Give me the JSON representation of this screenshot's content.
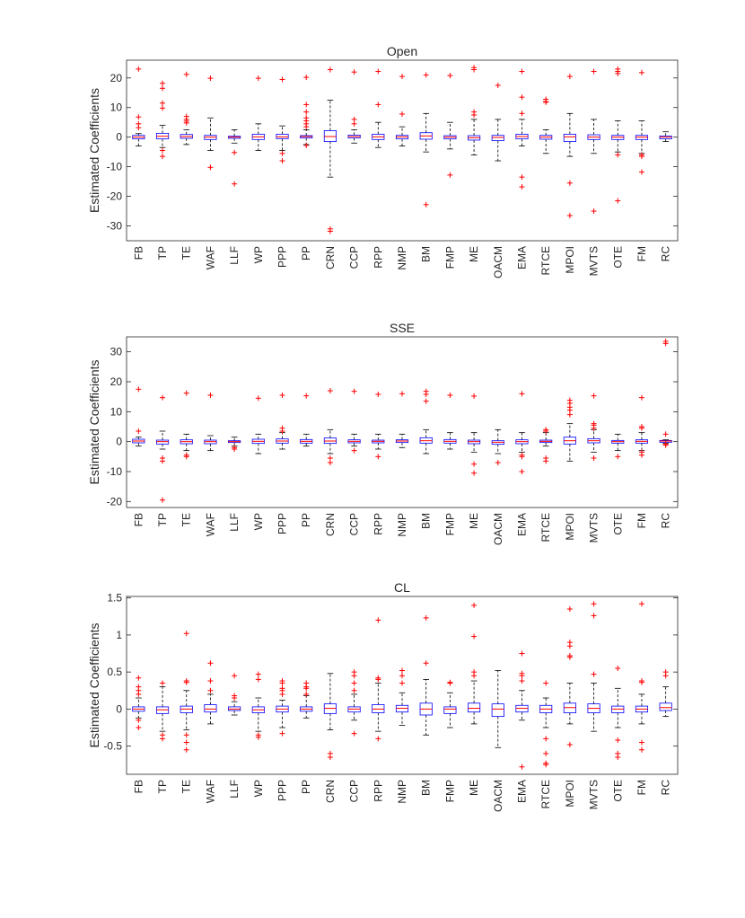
{
  "chart_data": [
    {
      "type": "box",
      "title": "Open",
      "ylabel": "Estimated Coefficients",
      "ylim": [
        -35,
        26
      ],
      "yticks": [
        20,
        10,
        0,
        -10,
        -20,
        -30
      ],
      "grid": false,
      "colors": {
        "box": "#0000ff",
        "median": "#ff0000",
        "whisker": "#000000",
        "outlier": "#ff0000"
      },
      "categories": [
        "FB",
        "TP",
        "TE",
        "WAF",
        "LLF",
        "WP",
        "PPP",
        "PP",
        "CRN",
        "CCP",
        "RPP",
        "NMP",
        "BM",
        "FMP",
        "ME",
        "OACM",
        "EMA",
        "RTCE",
        "MPOI",
        "MVTS",
        "OTE",
        "FM",
        "RC"
      ],
      "boxes": [
        {
          "q1": -0.6,
          "median": 0,
          "q3": 0.6,
          "low": -3,
          "high": 1.2,
          "outliers": [
            23,
            6.8,
            4.5,
            3.2
          ]
        },
        {
          "q1": -0.6,
          "median": 0.3,
          "q3": 1.3,
          "low": -3.5,
          "high": 4,
          "outliers": [
            18.2,
            16.5,
            11.5,
            9.8,
            -4.5,
            -6.5
          ]
        },
        {
          "q1": -0.4,
          "median": 0.2,
          "q3": 0.9,
          "low": -2.5,
          "high": 2.5,
          "outliers": [
            21.2,
            7,
            6,
            5.4,
            4.8
          ]
        },
        {
          "q1": -0.8,
          "median": 0,
          "q3": 0.6,
          "low": -4.5,
          "high": 6.5,
          "outliers": [
            19.9,
            -10.2
          ]
        },
        {
          "q1": -0.4,
          "median": 0,
          "q3": 0.3,
          "low": -2,
          "high": 2.5,
          "outliers": [
            -5.2,
            -15.8
          ]
        },
        {
          "q1": -0.8,
          "median": 0.1,
          "q3": 1,
          "low": -4.5,
          "high": 4.5,
          "outliers": [
            19.9
          ]
        },
        {
          "q1": -0.5,
          "median": 0.1,
          "q3": 1,
          "low": -4.5,
          "high": 3.8,
          "outliers": [
            19.5,
            -5.5,
            -8
          ]
        },
        {
          "q1": -0.3,
          "median": 0.2,
          "q3": 0.5,
          "low": -2.5,
          "high": 2.5,
          "outliers": [
            20.2,
            11,
            8.5,
            6.5,
            5.5,
            4.5,
            3.5,
            -2.8
          ]
        },
        {
          "q1": -1.5,
          "median": 0.2,
          "q3": 2.2,
          "low": -13.5,
          "high": 12.5,
          "outliers": [
            22.8,
            -31,
            -31.8
          ]
        },
        {
          "q1": -0.3,
          "median": 0.2,
          "q3": 0.7,
          "low": -2,
          "high": 2.5,
          "outliers": [
            22,
            6,
            4.5
          ]
        },
        {
          "q1": -0.8,
          "median": 0.1,
          "q3": 1,
          "low": -3.5,
          "high": 5,
          "outliers": [
            22.2,
            11
          ]
        },
        {
          "q1": -0.6,
          "median": 0.1,
          "q3": 0.6,
          "low": -3,
          "high": 3.5,
          "outliers": [
            20.5,
            7.8
          ]
        },
        {
          "q1": -0.7,
          "median": 0.4,
          "q3": 1.5,
          "low": -5,
          "high": 8,
          "outliers": [
            21,
            -22.8
          ]
        },
        {
          "q1": -0.6,
          "median": 0,
          "q3": 0.5,
          "low": -4,
          "high": 5,
          "outliers": [
            20.8,
            -12.8
          ]
        },
        {
          "q1": -1,
          "median": -0.2,
          "q3": 0.5,
          "low": -6,
          "high": 6,
          "outliers": [
            23.5,
            22.8,
            8.5,
            7.5
          ]
        },
        {
          "q1": -1.2,
          "median": -0.1,
          "q3": 0.6,
          "low": -8,
          "high": 6,
          "outliers": [
            17.5
          ]
        },
        {
          "q1": -0.6,
          "median": 0.2,
          "q3": 1,
          "low": -3,
          "high": 6,
          "outliers": [
            22.2,
            13.5,
            8,
            -13.5,
            -16.8
          ]
        },
        {
          "q1": -0.7,
          "median": 0,
          "q3": 0.6,
          "low": -5.5,
          "high": 2.5,
          "outliers": [
            12.8,
            12,
            11.8
          ]
        },
        {
          "q1": -1.5,
          "median": 0.1,
          "q3": 1,
          "low": -6.5,
          "high": 8,
          "outliers": [
            20.5,
            -15.5,
            -26.5
          ]
        },
        {
          "q1": -0.8,
          "median": 0,
          "q3": 0.8,
          "low": -5.5,
          "high": 6,
          "outliers": [
            22.2,
            -25
          ]
        },
        {
          "q1": -0.8,
          "median": 0,
          "q3": 0.6,
          "low": -5,
          "high": 5.5,
          "outliers": [
            23,
            22.2,
            21.5,
            -6,
            -21.5
          ]
        },
        {
          "q1": -0.8,
          "median": 0,
          "q3": 0.6,
          "low": -5.5,
          "high": 5.5,
          "outliers": [
            21.8,
            -6,
            -6.5,
            -11.8
          ]
        },
        {
          "q1": -0.6,
          "median": 0,
          "q3": 0.4,
          "low": -1.5,
          "high": 1.8,
          "outliers": []
        }
      ]
    },
    {
      "type": "box",
      "title": "SSE",
      "ylabel": "Estimated Coefficients",
      "ylim": [
        -22,
        35
      ],
      "yticks": [
        30,
        20,
        10,
        0,
        -10,
        -20
      ],
      "grid": false,
      "colors": {
        "box": "#0000ff",
        "median": "#ff0000",
        "whisker": "#000000",
        "outlier": "#ff0000"
      },
      "categories": [
        "FB",
        "TP",
        "TE",
        "WAF",
        "LLF",
        "WP",
        "PPP",
        "PP",
        "CRN",
        "CCP",
        "RPP",
        "NMP",
        "BM",
        "FMP",
        "ME",
        "OACM",
        "EMA",
        "RTCE",
        "MPOI",
        "MVTS",
        "OTE",
        "FM",
        "RC"
      ],
      "boxes": [
        {
          "q1": -0.4,
          "median": 0.2,
          "q3": 0.8,
          "low": -1.5,
          "high": 1.5,
          "outliers": [
            17.5,
            3.5
          ]
        },
        {
          "q1": -0.8,
          "median": 0,
          "q3": 0.5,
          "low": -2.5,
          "high": 3.5,
          "outliers": [
            14.7,
            -5.5,
            -6.5,
            -19.5
          ]
        },
        {
          "q1": -0.7,
          "median": 0,
          "q3": 0.6,
          "low": -3,
          "high": 2.5,
          "outliers": [
            16.2,
            -4.5,
            -5
          ]
        },
        {
          "q1": -0.7,
          "median": 0,
          "q3": 0.5,
          "low": -3,
          "high": 2,
          "outliers": [
            15.5
          ]
        },
        {
          "q1": -0.3,
          "median": 0,
          "q3": 0.3,
          "low": -1.5,
          "high": 1.5,
          "outliers": [
            -2,
            -2.5
          ]
        },
        {
          "q1": -0.6,
          "median": 0.1,
          "q3": 0.8,
          "low": -4,
          "high": 2.5,
          "outliers": [
            14.5
          ]
        },
        {
          "q1": -0.5,
          "median": 0.2,
          "q3": 0.9,
          "low": -2.5,
          "high": 3,
          "outliers": [
            15.5,
            4.5,
            3.5
          ]
        },
        {
          "q1": -0.5,
          "median": 0.1,
          "q3": 0.7,
          "low": -1.5,
          "high": 2.5,
          "outliers": [
            15.3
          ]
        },
        {
          "q1": -0.6,
          "median": 0.2,
          "q3": 1.2,
          "low": -4,
          "high": 4,
          "outliers": [
            17,
            -5.5,
            -7
          ]
        },
        {
          "q1": -0.4,
          "median": 0.1,
          "q3": 0.6,
          "low": -1.5,
          "high": 2.5,
          "outliers": [
            16.8,
            -3
          ]
        },
        {
          "q1": -0.4,
          "median": 0.1,
          "q3": 0.5,
          "low": -2.5,
          "high": 2.5,
          "outliers": [
            15.8,
            -5
          ]
        },
        {
          "q1": -0.3,
          "median": 0.2,
          "q3": 0.6,
          "low": -2,
          "high": 2.5,
          "outliers": [
            16
          ]
        },
        {
          "q1": -0.5,
          "median": 0.3,
          "q3": 1.3,
          "low": -4,
          "high": 4,
          "outliers": [
            16.8,
            15.8,
            13.5
          ]
        },
        {
          "q1": -0.5,
          "median": 0.1,
          "q3": 0.7,
          "low": -2.5,
          "high": 3,
          "outliers": [
            15.5
          ]
        },
        {
          "q1": -0.7,
          "median": 0,
          "q3": 0.5,
          "low": -3.5,
          "high": 3,
          "outliers": [
            15.2,
            -7.5,
            -10.5
          ]
        },
        {
          "q1": -0.9,
          "median": -0.2,
          "q3": 0.3,
          "low": -4,
          "high": 4,
          "outliers": [
            -7
          ]
        },
        {
          "q1": -0.7,
          "median": 0,
          "q3": 0.6,
          "low": -3.5,
          "high": 3,
          "outliers": [
            16,
            -4.5,
            -5,
            -10
          ]
        },
        {
          "q1": -0.3,
          "median": 0.1,
          "q3": 0.5,
          "low": -1.5,
          "high": 3,
          "outliers": [
            4,
            3.5,
            -5.5,
            -6.5
          ]
        },
        {
          "q1": -0.8,
          "median": 0.3,
          "q3": 1.5,
          "low": -6.5,
          "high": 6,
          "outliers": [
            13.8,
            12.8,
            11.5,
            10.5,
            9
          ]
        },
        {
          "q1": -0.4,
          "median": 0.3,
          "q3": 1,
          "low": -3.5,
          "high": 4,
          "outliers": [
            15.3,
            6,
            5.5,
            4.5,
            -5.5
          ]
        },
        {
          "q1": -0.5,
          "median": 0,
          "q3": 0.4,
          "low": -3,
          "high": 2.5,
          "outliers": [
            -5
          ]
        },
        {
          "q1": -0.5,
          "median": 0.1,
          "q3": 0.6,
          "low": -3,
          "high": 3,
          "outliers": [
            14.7,
            5,
            4.5,
            -3.5,
            -4.5
          ]
        },
        {
          "q1": -0.2,
          "median": 0.2,
          "q3": 0.4,
          "low": -0.5,
          "high": 0.6,
          "outliers": [
            33.5,
            32.8,
            2.5,
            -0.8,
            -1.2
          ]
        }
      ]
    },
    {
      "type": "box",
      "title": "CL",
      "ylabel": "Estimated Coefficients",
      "ylim": [
        -0.88,
        1.52
      ],
      "yticks": [
        1.5,
        1,
        0.5,
        0,
        -0.5
      ],
      "yticklabels": [
        "1.5",
        "1",
        "0.5",
        "0",
        "-0.5"
      ],
      "grid": false,
      "colors": {
        "box": "#0000ff",
        "median": "#ff0000",
        "whisker": "#000000",
        "outlier": "#ff0000"
      },
      "categories": [
        "FB",
        "TP",
        "TE",
        "WAF",
        "LLF",
        "WP",
        "PPP",
        "PP",
        "CRN",
        "CCP",
        "RPP",
        "NMP",
        "BM",
        "FMP",
        "ME",
        "OACM",
        "EMA",
        "RTCE",
        "MPOI",
        "MVTS",
        "OTE",
        "FM",
        "RC"
      ],
      "boxes": [
        {
          "q1": -0.03,
          "median": 0,
          "q3": 0.03,
          "low": -0.12,
          "high": 0.15,
          "outliers": [
            0.42,
            0.3,
            0.25,
            0.2,
            -0.15,
            -0.25
          ]
        },
        {
          "q1": -0.06,
          "median": -0.01,
          "q3": 0.03,
          "low": -0.3,
          "high": 0.3,
          "outliers": [
            0.35,
            -0.35,
            -0.4
          ]
        },
        {
          "q1": -0.05,
          "median": 0,
          "q3": 0.04,
          "low": -0.28,
          "high": 0.25,
          "outliers": [
            1.02,
            0.38,
            0.36,
            -0.35,
            -0.45,
            -0.55
          ]
        },
        {
          "q1": -0.04,
          "median": 0,
          "q3": 0.06,
          "low": -0.2,
          "high": 0.2,
          "outliers": [
            0.62,
            0.38,
            0.25
          ]
        },
        {
          "q1": -0.02,
          "median": 0,
          "q3": 0.03,
          "low": -0.08,
          "high": 0.1,
          "outliers": [
            0.45,
            0.18,
            0.15
          ]
        },
        {
          "q1": -0.05,
          "median": -0.01,
          "q3": 0.03,
          "low": -0.3,
          "high": 0.15,
          "outliers": [
            0.47,
            0.4,
            -0.35,
            -0.38
          ]
        },
        {
          "q1": -0.04,
          "median": 0,
          "q3": 0.04,
          "low": -0.25,
          "high": 0.12,
          "outliers": [
            0.38,
            0.35,
            0.28,
            0.25,
            0.2,
            -0.33
          ]
        },
        {
          "q1": -0.03,
          "median": 0,
          "q3": 0.03,
          "low": -0.12,
          "high": 0.18,
          "outliers": [
            0.35,
            0.3,
            0.28,
            0.2
          ]
        },
        {
          "q1": -0.06,
          "median": 0.01,
          "q3": 0.07,
          "low": -0.28,
          "high": 0.48,
          "outliers": [
            -0.6,
            -0.65
          ]
        },
        {
          "q1": -0.04,
          "median": 0,
          "q3": 0.03,
          "low": -0.15,
          "high": 0.2,
          "outliers": [
            0.5,
            0.45,
            0.35,
            0.25,
            -0.33
          ]
        },
        {
          "q1": -0.05,
          "median": 0,
          "q3": 0.06,
          "low": -0.3,
          "high": 0.35,
          "outliers": [
            1.2,
            0.42,
            0.4,
            -0.4
          ]
        },
        {
          "q1": -0.04,
          "median": 0.01,
          "q3": 0.05,
          "low": -0.22,
          "high": 0.22,
          "outliers": [
            0.52,
            0.45,
            0.35
          ]
        },
        {
          "q1": -0.08,
          "median": 0,
          "q3": 0.08,
          "low": -0.35,
          "high": 0.4,
          "outliers": [
            1.23,
            0.62
          ]
        },
        {
          "q1": -0.06,
          "median": 0,
          "q3": 0.03,
          "low": -0.25,
          "high": 0.22,
          "outliers": [
            0.36,
            0.35
          ]
        },
        {
          "q1": -0.04,
          "median": 0.01,
          "q3": 0.08,
          "low": -0.2,
          "high": 0.38,
          "outliers": [
            1.4,
            0.98,
            0.5,
            0.45
          ]
        },
        {
          "q1": -0.1,
          "median": 0,
          "q3": 0.07,
          "low": -0.52,
          "high": 0.52,
          "outliers": []
        },
        {
          "q1": -0.04,
          "median": 0.01,
          "q3": 0.05,
          "low": -0.15,
          "high": 0.25,
          "outliers": [
            0.75,
            0.48,
            0.45,
            0.38,
            -0.78
          ]
        },
        {
          "q1": -0.05,
          "median": 0,
          "q3": 0.05,
          "low": -0.25,
          "high": 0.15,
          "outliers": [
            0.35,
            -0.4,
            -0.6,
            -0.73,
            -0.75
          ]
        },
        {
          "q1": -0.05,
          "median": 0.02,
          "q3": 0.08,
          "low": -0.2,
          "high": 0.35,
          "outliers": [
            1.35,
            0.9,
            0.85,
            0.72,
            0.7,
            -0.48
          ]
        },
        {
          "q1": -0.05,
          "median": 0.01,
          "q3": 0.07,
          "low": -0.3,
          "high": 0.35,
          "outliers": [
            1.42,
            1.26,
            0.47
          ]
        },
        {
          "q1": -0.05,
          "median": 0,
          "q3": 0.04,
          "low": -0.25,
          "high": 0.28,
          "outliers": [
            0.55,
            -0.42,
            -0.6,
            -0.65
          ]
        },
        {
          "q1": -0.04,
          "median": 0,
          "q3": 0.04,
          "low": -0.2,
          "high": 0.2,
          "outliers": [
            1.42,
            0.38,
            0.36,
            -0.45,
            -0.55
          ]
        },
        {
          "q1": -0.02,
          "median": 0.02,
          "q3": 0.08,
          "low": -0.1,
          "high": 0.3,
          "outliers": [
            0.5,
            0.45
          ]
        }
      ]
    }
  ]
}
